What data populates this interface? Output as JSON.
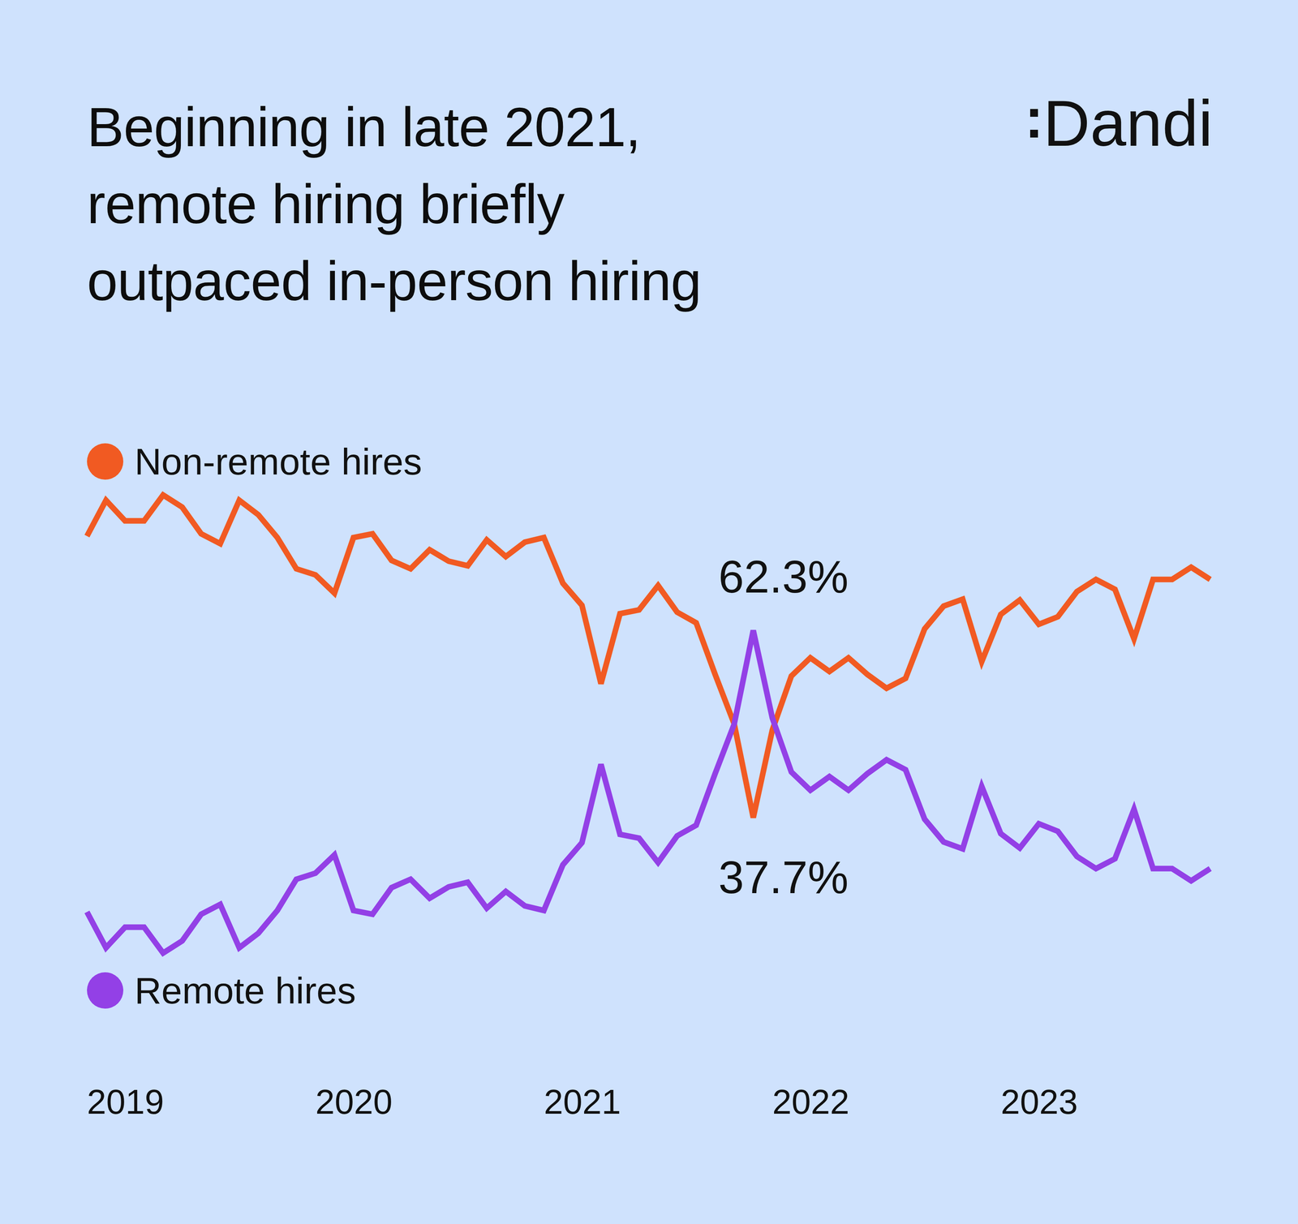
{
  "chart_data": {
    "type": "line",
    "title": "Beginning in late 2021,\nremote hiring briefly\noutpaced in-person hiring",
    "brand": "Dandi",
    "categories": [
      "2019",
      null,
      null,
      null,
      null,
      null,
      null,
      null,
      null,
      null,
      null,
      null,
      "2020",
      null,
      null,
      null,
      null,
      null,
      null,
      null,
      null,
      null,
      null,
      null,
      "2021",
      null,
      null,
      null,
      null,
      null,
      null,
      null,
      null,
      null,
      null,
      null,
      "2022",
      null,
      null,
      null,
      null,
      null,
      null,
      null,
      null,
      null,
      null,
      null,
      "2023",
      null,
      null,
      null,
      null,
      null,
      null,
      null,
      null,
      null,
      null,
      null
    ],
    "series": [
      {
        "name": "Non-remote hires",
        "color": "#f15a22",
        "values": [
          74.7,
          79.4,
          76.7,
          76.7,
          80.1,
          78.5,
          75.0,
          73.7,
          79.4,
          77.5,
          74.5,
          70.4,
          69.6,
          67.2,
          74.5,
          75.0,
          71.5,
          70.4,
          72.9,
          71.4,
          70.8,
          74.2,
          72.0,
          73.9,
          74.5,
          68.5,
          65.6,
          55.3,
          64.5,
          65.0,
          68.2,
          64.7,
          63.3,
          56.5,
          50.0,
          37.7,
          49.2,
          56.3,
          58.7,
          56.9,
          58.7,
          56.5,
          54.7,
          56.0,
          62.5,
          65.5,
          66.4,
          58.2,
          64.4,
          66.3,
          63.1,
          64.1,
          67.4,
          69.0,
          67.7,
          61.2,
          69.0,
          69.0,
          70.6,
          69.0
        ]
      },
      {
        "name": "Remote hires",
        "color": "#9340e6",
        "values": [
          25.3,
          20.6,
          23.3,
          23.3,
          19.9,
          21.5,
          25.0,
          26.3,
          20.6,
          22.5,
          25.5,
          29.6,
          30.4,
          32.8,
          25.5,
          25.0,
          28.5,
          29.6,
          27.1,
          28.6,
          29.2,
          25.8,
          28.0,
          26.1,
          25.5,
          31.5,
          34.4,
          44.7,
          35.5,
          35.0,
          31.8,
          35.3,
          36.7,
          43.5,
          50.0,
          62.3,
          50.8,
          43.7,
          41.3,
          43.1,
          41.3,
          43.5,
          45.3,
          44.0,
          37.5,
          34.5,
          33.6,
          41.8,
          35.6,
          33.7,
          36.9,
          35.9,
          32.6,
          31.0,
          32.3,
          38.8,
          31.0,
          31.0,
          29.4,
          31.0
        ]
      }
    ],
    "ylim": [
      18,
      82
    ],
    "tick_labels": "x",
    "grid": false,
    "annotations": [
      "62.3%",
      "37.7%"
    ]
  }
}
